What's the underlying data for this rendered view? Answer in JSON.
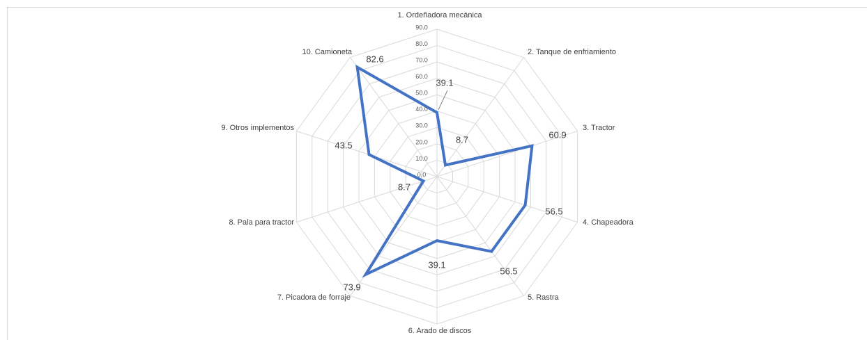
{
  "chart_data": {
    "type": "radar",
    "categories": [
      "1. Ordeñadora mecánica",
      "2. Tanque de enfriamiento",
      "3. Tractor",
      "4. Chapeadora",
      "5. Rastra",
      "6. Arado de discos",
      "7. Picadora de forraje",
      "8. Pala para tractor",
      "9. Otros implementos",
      "10. Camioneta"
    ],
    "values": [
      39.1,
      8.7,
      60.9,
      56.5,
      56.5,
      39.1,
      73.9,
      8.7,
      43.5,
      82.6
    ],
    "color": "#4472c4",
    "rlim": [
      0,
      90
    ],
    "rticks": [
      {
        "value": 0,
        "label": "0.0"
      },
      {
        "value": 10,
        "label": "10.0"
      },
      {
        "value": 20,
        "label": "20.0"
      },
      {
        "value": 30,
        "label": "30.0"
      },
      {
        "value": 40,
        "label": "40.0"
      },
      {
        "value": 50,
        "label": "50.0"
      },
      {
        "value": 60,
        "label": "60.0"
      },
      {
        "value": 70,
        "label": "70.0"
      },
      {
        "value": 80,
        "label": "80.0"
      },
      {
        "value": 90,
        "label": "90.0"
      }
    ],
    "grid": true
  }
}
